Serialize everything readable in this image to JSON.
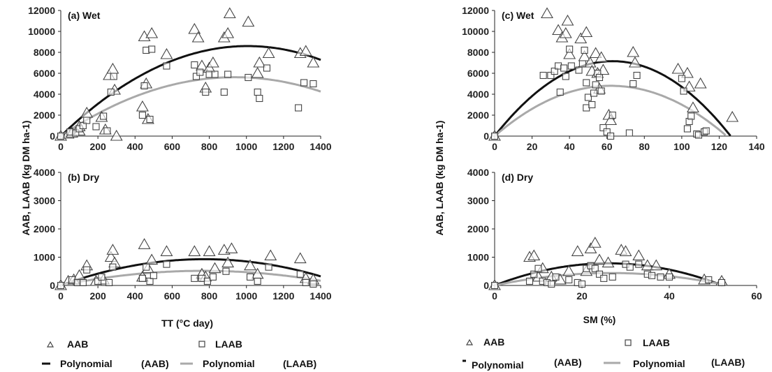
{
  "colors": {
    "aab": "#111111",
    "laab": "#a9a9a9",
    "marker_stroke": "#444444"
  },
  "labels": {
    "ylabel_left": "AAB, LAAB (kg DM ha-1)",
    "ylabel_right": "AAB, LAAB (kg DM ha-1)",
    "xlabel_left": "TT (°C day)",
    "xlabel_right": "SM (%)",
    "legend_left": {
      "aab": "AAB",
      "laab": "LAAB",
      "poly": "Polynomial",
      "poly_aab": "(AAB)",
      "poly_laab": "(LAAB)"
    },
    "legend_right": {
      "aab": "AAB",
      "laab": "LAAB",
      "poly": "Polynomial",
      "poly_aab": "(AAB)",
      "poly_laab": "(LAAB)"
    }
  },
  "chart_data": [
    {
      "id": "a",
      "type": "scatter",
      "title": "(a) Wet",
      "xlim": [
        0,
        1400
      ],
      "ylim": [
        0,
        12000
      ],
      "xticks": [
        0,
        200,
        400,
        600,
        800,
        1000,
        1200,
        1400
      ],
      "yticks": [
        0,
        2000,
        4000,
        6000,
        8000,
        10000,
        12000
      ],
      "show_x_ticklabels": true,
      "series": [
        {
          "name": "AAB",
          "marker": "triangle",
          "points": [
            [
              0,
              0
            ],
            [
              40,
              200
            ],
            [
              60,
              300
            ],
            [
              100,
              500
            ],
            [
              100,
              900
            ],
            [
              140,
              2200
            ],
            [
              220,
              1800
            ],
            [
              240,
              600
            ],
            [
              260,
              5800
            ],
            [
              280,
              6400
            ],
            [
              290,
              4400
            ],
            [
              300,
              0
            ],
            [
              440,
              2800
            ],
            [
              450,
              9500
            ],
            [
              460,
              5000
            ],
            [
              470,
              1600
            ],
            [
              490,
              9800
            ],
            [
              570,
              7800
            ],
            [
              720,
              10200
            ],
            [
              740,
              9400
            ],
            [
              760,
              6700
            ],
            [
              780,
              4600
            ],
            [
              800,
              6500
            ],
            [
              820,
              7000
            ],
            [
              880,
              9400
            ],
            [
              900,
              9800
            ],
            [
              910,
              11700
            ],
            [
              1010,
              10900
            ],
            [
              1060,
              6000
            ],
            [
              1070,
              7000
            ],
            [
              1120,
              7900
            ],
            [
              1290,
              7900
            ],
            [
              1320,
              8100
            ],
            [
              1360,
              7000
            ]
          ]
        },
        {
          "name": "LAAB",
          "marker": "square",
          "points": [
            [
              0,
              0
            ],
            [
              50,
              400
            ],
            [
              80,
              300
            ],
            [
              100,
              700
            ],
            [
              120,
              1000
            ],
            [
              140,
              1500
            ],
            [
              190,
              900
            ],
            [
              230,
              1900
            ],
            [
              250,
              500
            ],
            [
              270,
              4200
            ],
            [
              285,
              5700
            ],
            [
              440,
              2000
            ],
            [
              450,
              4800
            ],
            [
              460,
              8200
            ],
            [
              480,
              1600
            ],
            [
              490,
              8300
            ],
            [
              570,
              6700
            ],
            [
              720,
              6800
            ],
            [
              730,
              5700
            ],
            [
              750,
              6100
            ],
            [
              780,
              4200
            ],
            [
              800,
              5900
            ],
            [
              830,
              5900
            ],
            [
              880,
              4200
            ],
            [
              900,
              5900
            ],
            [
              1010,
              5600
            ],
            [
              1060,
              4200
            ],
            [
              1070,
              3600
            ],
            [
              1110,
              6500
            ],
            [
              1280,
              2700
            ],
            [
              1310,
              5100
            ],
            [
              1360,
              5000
            ]
          ]
        }
      ],
      "fits": [
        {
          "name": "Polynomial (AAB)",
          "coef": [
            0,
            17.1,
            -0.0085
          ]
        },
        {
          "name": "Polynomial (LAAB)",
          "coef": [
            0,
            12.0,
            -0.0064
          ]
        }
      ]
    },
    {
      "id": "b",
      "type": "scatter",
      "title": "(b) Dry",
      "xlim": [
        0,
        1400
      ],
      "ylim": [
        0,
        4000
      ],
      "xticks": [
        0,
        200,
        400,
        600,
        800,
        1000,
        1200,
        1400
      ],
      "yticks": [
        0,
        1000,
        2000,
        3000,
        4000
      ],
      "show_x_ticklabels": true,
      "series": [
        {
          "name": "AAB",
          "marker": "triangle",
          "points": [
            [
              0,
              0
            ],
            [
              40,
              150
            ],
            [
              70,
              200
            ],
            [
              100,
              350
            ],
            [
              140,
              700
            ],
            [
              190,
              150
            ],
            [
              230,
              200
            ],
            [
              270,
              1000
            ],
            [
              280,
              1250
            ],
            [
              290,
              800
            ],
            [
              440,
              300
            ],
            [
              450,
              1450
            ],
            [
              470,
              600
            ],
            [
              490,
              900
            ],
            [
              570,
              1200
            ],
            [
              720,
              1200
            ],
            [
              760,
              400
            ],
            [
              780,
              300
            ],
            [
              800,
              1200
            ],
            [
              830,
              600
            ],
            [
              880,
              1250
            ],
            [
              900,
              800
            ],
            [
              920,
              1300
            ],
            [
              1020,
              700
            ],
            [
              1060,
              400
            ],
            [
              1130,
              1050
            ],
            [
              1290,
              950
            ],
            [
              1320,
              250
            ],
            [
              1360,
              200
            ]
          ]
        },
        {
          "name": "LAAB",
          "marker": "square",
          "points": [
            [
              0,
              0
            ],
            [
              60,
              200
            ],
            [
              90,
              100
            ],
            [
              120,
              100
            ],
            [
              140,
              550
            ],
            [
              200,
              150
            ],
            [
              220,
              300
            ],
            [
              260,
              100
            ],
            [
              280,
              650
            ],
            [
              440,
              250
            ],
            [
              460,
              650
            ],
            [
              480,
              150
            ],
            [
              500,
              350
            ],
            [
              570,
              750
            ],
            [
              720,
              250
            ],
            [
              760,
              250
            ],
            [
              790,
              150
            ],
            [
              820,
              300
            ],
            [
              890,
              500
            ],
            [
              1020,
              300
            ],
            [
              1060,
              150
            ],
            [
              1120,
              650
            ],
            [
              1290,
              400
            ],
            [
              1320,
              100
            ],
            [
              1360,
              50
            ]
          ]
        }
      ],
      "fits": [
        {
          "name": "Polynomial (AAB)",
          "coef": [
            0,
            2.4,
            -0.00155
          ]
        },
        {
          "name": "Polynomial (LAAB)",
          "coef": [
            0,
            1.35,
            -0.00088
          ]
        }
      ]
    },
    {
      "id": "c",
      "type": "scatter",
      "title": "(c) Wet",
      "xlim": [
        0,
        140
      ],
      "ylim": [
        0,
        12000
      ],
      "xticks": [
        0,
        20,
        40,
        60,
        80,
        100,
        120,
        140
      ],
      "yticks": [
        0,
        2000,
        4000,
        6000,
        8000,
        10000,
        12000
      ],
      "show_x_ticklabels": true,
      "series": [
        {
          "name": "AAB",
          "marker": "triangle",
          "points": [
            [
              0,
              0
            ],
            [
              28,
              11700
            ],
            [
              34,
              10100
            ],
            [
              36,
              9400
            ],
            [
              38,
              9800
            ],
            [
              39,
              11000
            ],
            [
              40,
              7800
            ],
            [
              46,
              9300
            ],
            [
              48,
              7600
            ],
            [
              49,
              9900
            ],
            [
              51,
              7000
            ],
            [
              52,
              6200
            ],
            [
              54,
              7900
            ],
            [
              55,
              6000
            ],
            [
              56,
              4500
            ],
            [
              57,
              7500
            ],
            [
              58,
              6300
            ],
            [
              61,
              2000
            ],
            [
              62,
              1500
            ],
            [
              74,
              8000
            ],
            [
              75,
              7000
            ],
            [
              98,
              6400
            ],
            [
              103,
              6000
            ],
            [
              104,
              4700
            ],
            [
              106,
              2700
            ],
            [
              110,
              5000
            ],
            [
              127,
              1800
            ]
          ]
        },
        {
          "name": "LAAB",
          "marker": "square",
          "points": [
            [
              0,
              0
            ],
            [
              26,
              5800
            ],
            [
              30,
              5800
            ],
            [
              32,
              6200
            ],
            [
              34,
              6700
            ],
            [
              35,
              4200
            ],
            [
              37,
              6500
            ],
            [
              38,
              5700
            ],
            [
              40,
              8300
            ],
            [
              41,
              6700
            ],
            [
              45,
              6300
            ],
            [
              47,
              6900
            ],
            [
              48,
              8200
            ],
            [
              49,
              5100
            ],
            [
              49,
              2700
            ],
            [
              50,
              3700
            ],
            [
              52,
              3000
            ],
            [
              53,
              4100
            ],
            [
              54,
              4900
            ],
            [
              55,
              6000
            ],
            [
              56,
              5600
            ],
            [
              57,
              4300
            ],
            [
              58,
              800
            ],
            [
              60,
              400
            ],
            [
              62,
              0
            ],
            [
              63,
              2000
            ],
            [
              72,
              300
            ],
            [
              74,
              5000
            ],
            [
              76,
              5800
            ],
            [
              100,
              5500
            ],
            [
              101,
              4300
            ],
            [
              103,
              700
            ],
            [
              104,
              1400
            ],
            [
              105,
              1900
            ],
            [
              108,
              200
            ],
            [
              109,
              100
            ],
            [
              112,
              400
            ],
            [
              113,
              500
            ]
          ]
        }
      ],
      "fits": [
        {
          "name": "Polynomial (AAB)",
          "coef": [
            0,
            227,
            -1.8
          ]
        },
        {
          "name": "Polynomial (LAAB)",
          "coef": [
            0,
            155,
            -1.25
          ]
        }
      ]
    },
    {
      "id": "d",
      "type": "scatter",
      "title": "(d) Dry",
      "xlim": [
        0,
        60
      ],
      "ylim": [
        0,
        4000
      ],
      "xticks": [
        0,
        20,
        40,
        60
      ],
      "yticks": [
        0,
        1000,
        2000,
        3000,
        4000
      ],
      "show_x_ticklabels": true,
      "series": [
        {
          "name": "AAB",
          "marker": "triangle",
          "points": [
            [
              0,
              0
            ],
            [
              8,
              1000
            ],
            [
              9,
              1050
            ],
            [
              10,
              300
            ],
            [
              11,
              600
            ],
            [
              13,
              300
            ],
            [
              15,
              200
            ],
            [
              17,
              500
            ],
            [
              19,
              1200
            ],
            [
              21,
              500
            ],
            [
              22,
              1300
            ],
            [
              23,
              1500
            ],
            [
              24,
              900
            ],
            [
              26,
              800
            ],
            [
              29,
              1250
            ],
            [
              30,
              1200
            ],
            [
              33,
              1050
            ],
            [
              35,
              700
            ],
            [
              37,
              700
            ],
            [
              40,
              400
            ],
            [
              48,
              200
            ],
            [
              52,
              150
            ]
          ]
        },
        {
          "name": "LAAB",
          "marker": "square",
          "points": [
            [
              0,
              0
            ],
            [
              8,
              150
            ],
            [
              9,
              400
            ],
            [
              10,
              600
            ],
            [
              11,
              150
            ],
            [
              12,
              100
            ],
            [
              13,
              50
            ],
            [
              14,
              300
            ],
            [
              17,
              200
            ],
            [
              19,
              100
            ],
            [
              20,
              50
            ],
            [
              21,
              600
            ],
            [
              22,
              700
            ],
            [
              23,
              600
            ],
            [
              24,
              400
            ],
            [
              25,
              250
            ],
            [
              27,
              300
            ],
            [
              30,
              750
            ],
            [
              31,
              650
            ],
            [
              33,
              750
            ],
            [
              35,
              400
            ],
            [
              36,
              350
            ],
            [
              38,
              300
            ],
            [
              40,
              300
            ],
            [
              49,
              200
            ],
            [
              52,
              100
            ]
          ]
        }
      ],
      "fits": [
        {
          "name": "Polynomial (AAB)",
          "coef": [
            0,
            60,
            -1.15
          ]
        },
        {
          "name": "Polynomial (LAAB)",
          "coef": [
            0,
            33,
            -0.62
          ]
        }
      ]
    }
  ]
}
